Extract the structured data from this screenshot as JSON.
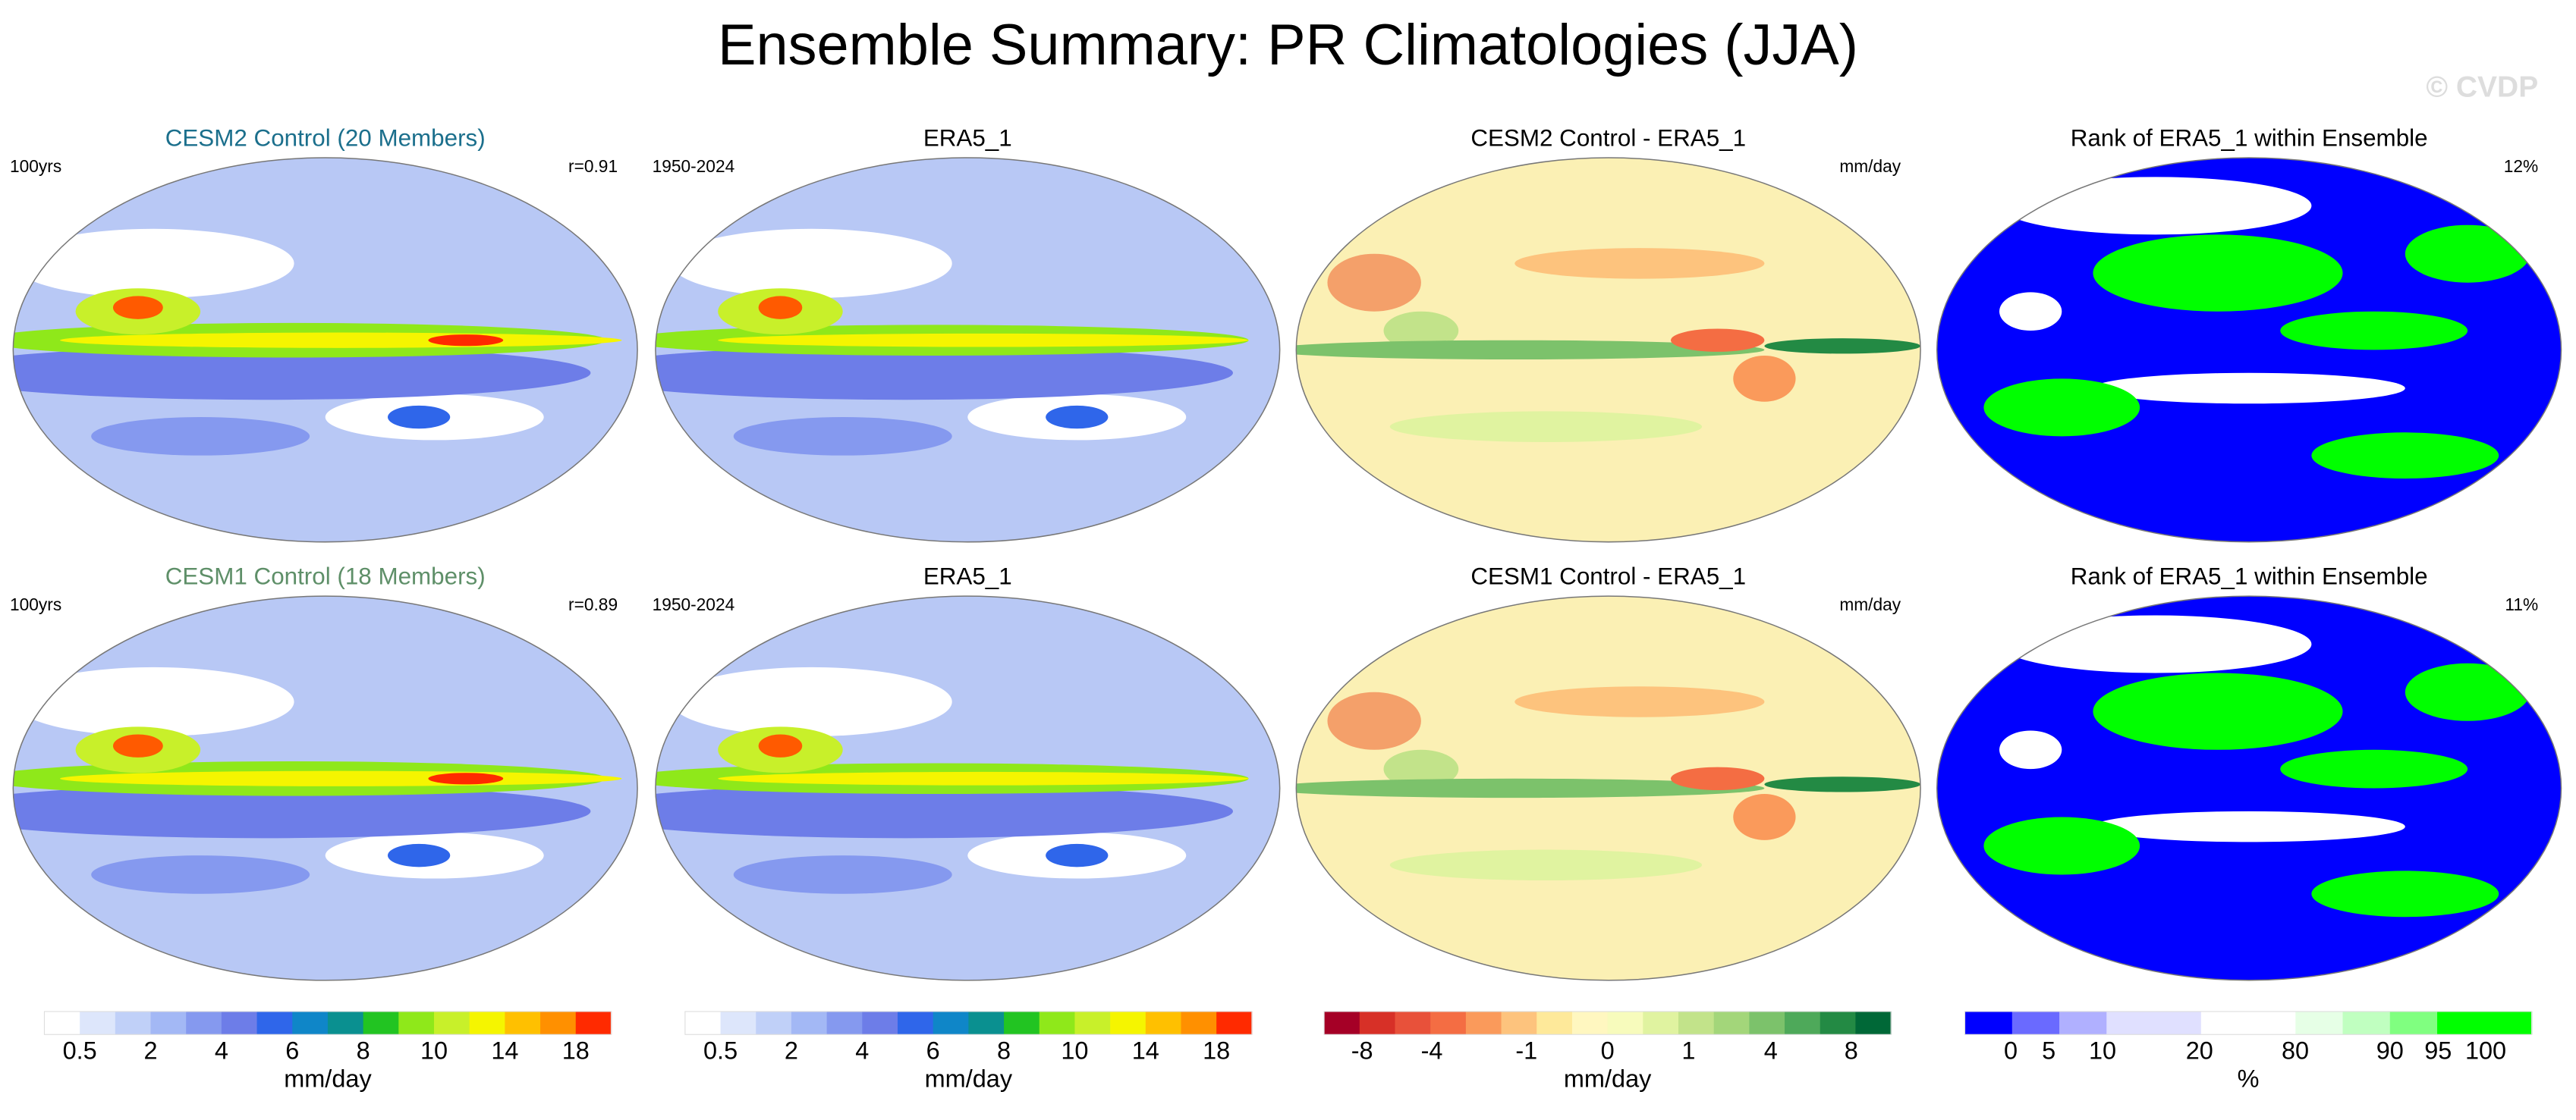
{
  "title": "Ensemble Summary: PR Climatologies (JJA)",
  "watermark": "© CVDP",
  "rows": [
    {
      "panels": [
        {
          "title": "CESM2 Control (20 Members)",
          "title_color": "#1b6f8c",
          "left": "100yrs",
          "right": "r=0.91"
        },
        {
          "title": "ERA5_1",
          "title_color": "#000000",
          "left": "1950-2024"
        },
        {
          "title": "CESM2 Control - ERA5_1",
          "title_color": "#000000",
          "right": "mm/day"
        },
        {
          "title": "Rank of ERA5_1 within Ensemble",
          "title_color": "#000000",
          "right": "12%"
        }
      ]
    },
    {
      "panels": [
        {
          "title": "CESM1 Control (18 Members)",
          "title_color": "#5e8f68",
          "left": "100yrs",
          "right": "r=0.89"
        },
        {
          "title": "ERA5_1",
          "title_color": "#000000",
          "left": "1950-2024"
        },
        {
          "title": "CESM1 Control - ERA5_1",
          "title_color": "#000000",
          "right": "mm/day"
        },
        {
          "title": "Rank of ERA5_1 within Ensemble",
          "title_color": "#000000",
          "right": "11%"
        }
      ]
    }
  ],
  "colorbars": [
    {
      "colors": [
        "#ffffff",
        "#dde6fb",
        "#c0d0f8",
        "#a3b8f5",
        "#8599ef",
        "#6d7de8",
        "#2f66ea",
        "#0f86c8",
        "#0a9090",
        "#22c422",
        "#8fe81a",
        "#c8f02a",
        "#f5f500",
        "#ffc000",
        "#ff9000",
        "#ff2a00"
      ],
      "labels": [
        0.5,
        2,
        4,
        6,
        8,
        10,
        14,
        18
      ],
      "unit": "mm/day"
    },
    {
      "colors": [
        "#ffffff",
        "#dde6fb",
        "#c0d0f8",
        "#a3b8f5",
        "#8599ef",
        "#6d7de8",
        "#2f66ea",
        "#0f86c8",
        "#0a9090",
        "#22c422",
        "#8fe81a",
        "#c8f02a",
        "#f5f500",
        "#ffc000",
        "#ff9000",
        "#ff2a00"
      ],
      "labels": [
        0.5,
        2,
        4,
        6,
        8,
        10,
        14,
        18
      ],
      "unit": "mm/day"
    },
    {
      "colors": [
        "#a50026",
        "#d73027",
        "#e8513a",
        "#f46d43",
        "#fa9a5b",
        "#fdc37d",
        "#fee99a",
        "#fff7c0",
        "#f7fbbc",
        "#e0f3a0",
        "#c2e38a",
        "#a3d67a",
        "#7cc26b",
        "#4ea95a",
        "#238a44",
        "#006837"
      ],
      "labels": [
        -8,
        -4,
        -1,
        0,
        1,
        4,
        8
      ],
      "unit": "mm/day"
    },
    {
      "colors": [
        "#0000ff",
        "#6a6aff",
        "#b0b0ff",
        "#e0e0ff",
        "#e0e0ff",
        "#ffffff",
        "#ffffff",
        "#e6ffe6",
        "#c0ffc0",
        "#80ff80",
        "#00ff00",
        "#00ff00"
      ],
      "labels": [
        0,
        5,
        10,
        20,
        80,
        90,
        95,
        100
      ],
      "unit": "%"
    }
  ]
}
